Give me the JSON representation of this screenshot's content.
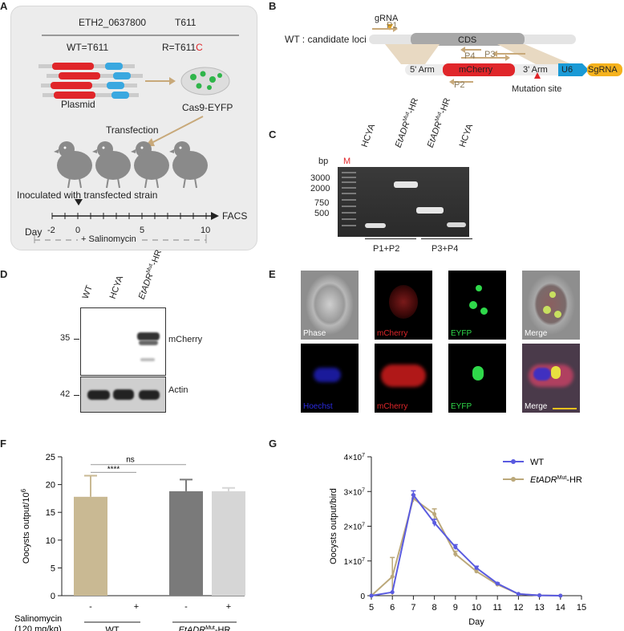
{
  "panels": {
    "A": "A",
    "B": "B",
    "C": "C",
    "D": "D",
    "E": "E",
    "F": "F",
    "G": "G"
  },
  "panelA": {
    "gene": "ETH2_0637800",
    "site": "T611",
    "wt": "WT=T611",
    "r_prefix": "R=T611",
    "r_mut": "C",
    "plasmid": "Plasmid",
    "cas9": "Cas9-EYFP",
    "transfection": "Transfection",
    "inoculated": "Inoculated with transfected strain",
    "day": "Day",
    "ticks": [
      "-2",
      "0",
      "5",
      "10"
    ],
    "facs": "FACS",
    "salino": "+ Salinomycin",
    "colors": {
      "red": "#e0262a",
      "blue": "#3aa8e0",
      "green": "#2fb54a",
      "bird": "#8a8a8a"
    }
  },
  "panelB": {
    "wt_loci": "WT : candidate loci",
    "gRNA": "gRNA",
    "cds": "CDS",
    "p1": "P1",
    "p2": "P2",
    "p3": "P3",
    "p4": "P4",
    "arm5": "5' Arm",
    "mcherry": "mCherry",
    "arm3": "3' Arm",
    "u6": "U6",
    "sgrna": "SgRNA",
    "mutation": "Mutation site",
    "colors": {
      "primer": "#c8a97a",
      "u6": "#1a9ad6",
      "sgrna": "#f5b21d",
      "mcherry": "#e0262a"
    }
  },
  "panelC": {
    "bp": "bp",
    "m": "M",
    "ladder": [
      "3000",
      "2000",
      "750",
      "500"
    ],
    "lanes": [
      "HCYA",
      "EtADR^Mut-HR",
      "EtADR^Mut-HR",
      "HCYA"
    ],
    "lane_base": "EtADR",
    "lane_sup": "Mut",
    "lane_suffix": "-HR",
    "hcya": "HCYA",
    "p12": "P1+P2",
    "p34": "P3+P4"
  },
  "panelD": {
    "lanes_wt": "WT",
    "lanes_hcya": "HCYA",
    "lane_base": "EtADR",
    "lane_sup": "Mut",
    "lane_suffix": "-HR",
    "mw35": "35",
    "mw42": "42",
    "mcherry": "mCherry",
    "actin": "Actin"
  },
  "panelE": {
    "row1": [
      "Phase",
      "mCherry",
      "EYFP",
      "Merge"
    ],
    "row2": [
      "Hoechst",
      "mCherry",
      "EYFP",
      "Merge"
    ]
  },
  "panelF": {
    "ylabel": "Oocysts output/10",
    "ylabel_sup": "6",
    "yticks": [
      "0",
      "5",
      "10",
      "15",
      "20",
      "25"
    ],
    "sig1": "****",
    "sig2": "ns",
    "salino_label": "Salinomycin",
    "dose": "(120 mg/kg)",
    "signs": [
      "-",
      "+",
      "-",
      "+"
    ],
    "group_wt": "WT",
    "group_mut_base": "EtADR",
    "group_mut_sup": "Mut",
    "group_mut_suffix": "-HR"
  },
  "panelG": {
    "ylabel": "Oocysts output/bird",
    "yticks": [
      "0",
      "1×10",
      "2×10",
      "3×10",
      "4×10"
    ],
    "ytick_sup": "7",
    "xlabel": "Day",
    "legend_wt": "WT",
    "legend_mut_base": "EtADR",
    "legend_mut_sup": "Mut",
    "legend_mut_suffix": "-HR"
  },
  "chart_data": [
    {
      "type": "bar",
      "panel": "F",
      "categories": [
        "WT -",
        "WT +",
        "EtADR Mut-HR -",
        "EtADR Mut-HR +"
      ],
      "values": [
        17.8,
        0,
        18.8,
        18.8
      ],
      "errors": [
        3.8,
        0,
        2.1,
        0.6
      ],
      "colors": [
        "#c9b993",
        "#c9b993",
        "#7a7a7a",
        "#d6d6d6"
      ],
      "ylabel": "Oocysts output/10^6",
      "ylim": [
        0,
        25
      ],
      "annotations": [
        "****",
        "ns"
      ]
    },
    {
      "type": "line",
      "panel": "G",
      "x": [
        5,
        6,
        7,
        8,
        9,
        10,
        11,
        12,
        13,
        14
      ],
      "series": [
        {
          "name": "WT",
          "color": "#5a5be0",
          "values": [
            0,
            0.1,
            2.9,
            2.1,
            1.4,
            0.8,
            0.35,
            0.05,
            0.01,
            0
          ],
          "errors": [
            0,
            0,
            0.12,
            0.1,
            0.07,
            0.05,
            0.02,
            0,
            0,
            0
          ]
        },
        {
          "name": "EtADR Mut-HR",
          "color": "#bba87a",
          "values": [
            0,
            0.55,
            2.8,
            2.35,
            1.2,
            0.7,
            0.32,
            0.05,
            0.01,
            0
          ],
          "errors": [
            0,
            0.55,
            0.1,
            0.15,
            0.08,
            0.05,
            0.02,
            0,
            0,
            0
          ]
        }
      ],
      "yunit": "×10^7",
      "xlabel": "Day",
      "ylabel": "Oocysts output/bird",
      "xlim": [
        5,
        15
      ],
      "ylim": [
        0,
        4
      ]
    }
  ]
}
